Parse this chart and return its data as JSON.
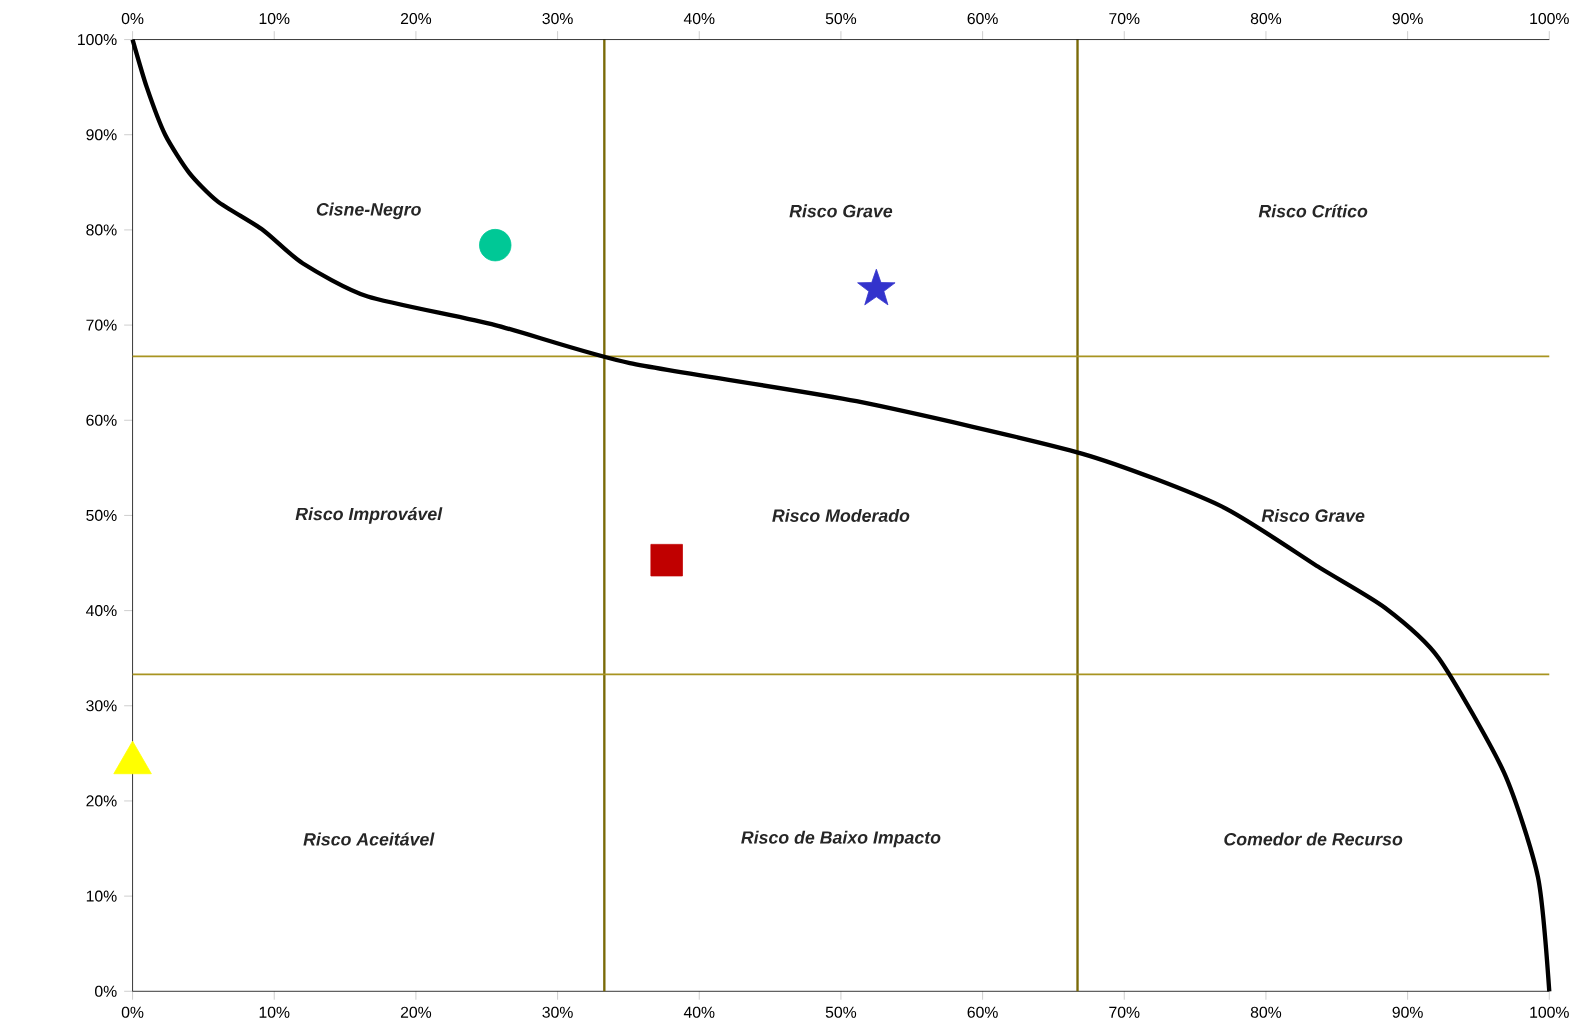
{
  "chart_data": {
    "type": "scatter",
    "xlim": [
      0,
      100
    ],
    "ylim": [
      0,
      100
    ],
    "xticks": [
      {
        "value": 0,
        "label": "0%"
      },
      {
        "value": 10,
        "label": "10%"
      },
      {
        "value": 20,
        "label": "20%"
      },
      {
        "value": 30,
        "label": "30%"
      },
      {
        "value": 40,
        "label": "40%"
      },
      {
        "value": 50,
        "label": "50%"
      },
      {
        "value": 60,
        "label": "60%"
      },
      {
        "value": 70,
        "label": "70%"
      },
      {
        "value": 80,
        "label": "80%"
      },
      {
        "value": 90,
        "label": "90%"
      },
      {
        "value": 100,
        "label": "100%"
      }
    ],
    "x2lim": [
      0,
      100
    ],
    "x2ticks": [
      {
        "value": 0,
        "label": "0%"
      },
      {
        "value": 10,
        "label": "10%"
      },
      {
        "value": 20,
        "label": "20%"
      },
      {
        "value": 30,
        "label": "30%"
      },
      {
        "value": 40,
        "label": "40%"
      },
      {
        "value": 50,
        "label": "50%"
      },
      {
        "value": 60,
        "label": "60%"
      },
      {
        "value": 70,
        "label": "70%"
      },
      {
        "value": 80,
        "label": "80%"
      },
      {
        "value": 90,
        "label": "90%"
      },
      {
        "value": 100,
        "label": "100%"
      }
    ],
    "yticks": [
      {
        "value": 0,
        "label": "0%"
      },
      {
        "value": 10,
        "label": "10%"
      },
      {
        "value": 20,
        "label": "20%"
      },
      {
        "value": 30,
        "label": "30%"
      },
      {
        "value": 40,
        "label": "40%"
      },
      {
        "value": 50,
        "label": "50%"
      },
      {
        "value": 60,
        "label": "60%"
      },
      {
        "value": 70,
        "label": "70%"
      },
      {
        "value": 80,
        "label": "80%"
      },
      {
        "value": 90,
        "label": "90%"
      },
      {
        "value": 100,
        "label": "100%"
      }
    ],
    "series": [
      {
        "type": "line",
        "color": "#000000",
        "line_style": "solid",
        "marker": "none",
        "x": [
          0,
          1,
          2.3,
          4,
          6,
          9.2,
          12,
          16.6,
          25.6,
          35.1,
          51.1,
          67,
          76.8,
          83.8,
          88.4,
          92.2,
          96.8,
          99.2,
          100
        ],
        "values": [
          100,
          95,
          90,
          86,
          83,
          80,
          76.5,
          73,
          70,
          66,
          62,
          56.5,
          51,
          44.5,
          40.3,
          35,
          23,
          12,
          0
        ]
      },
      {
        "type": "scatter",
        "color": "#00c896",
        "marker": "circle",
        "x": [
          25.6
        ],
        "values": [
          78.4
        ]
      },
      {
        "type": "scatter",
        "color": "#3333cc",
        "marker": "star",
        "x": [
          52.5
        ],
        "values": [
          73.8
        ]
      },
      {
        "type": "scatter",
        "color": "#c00000",
        "marker": "square",
        "x": [
          37.7
        ],
        "values": [
          45.3
        ]
      },
      {
        "type": "scatter",
        "color": "#ffff00",
        "marker": "triangle",
        "x": [
          0
        ],
        "values": [
          24
        ]
      }
    ],
    "ref_lines": [
      {
        "axis": "x",
        "value": 33.3,
        "color": "#7a6a08"
      },
      {
        "axis": "x",
        "value": 66.7,
        "color": "#7a6a08"
      },
      {
        "axis": "y",
        "value": 33.3,
        "color": "#a89420"
      },
      {
        "axis": "y",
        "value": 66.7,
        "color": "#a89420"
      }
    ],
    "annotations": [
      "Cisne-Negro",
      "Risco Grave",
      "Risco Crítico",
      "Risco Improvável",
      "Risco Moderado",
      "Risco Grave",
      "Risco Aceitável",
      "Risco de Baixo Impacto",
      "Comedor de Recurso"
    ]
  }
}
